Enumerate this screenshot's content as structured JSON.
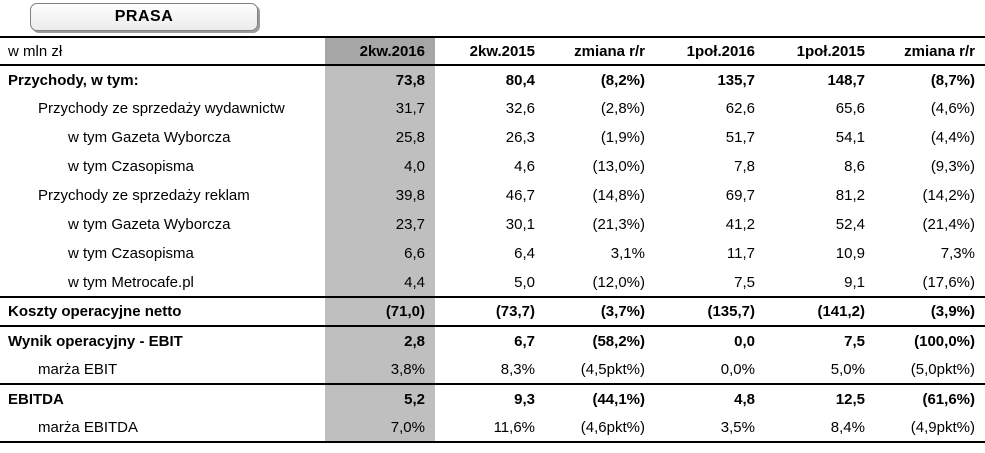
{
  "title": "PRASA",
  "colors": {
    "highlight_column": "#bfbfbf",
    "highlight_header": "#a6a6a6",
    "rule": "#000000"
  },
  "table": {
    "unit_label": "w mln zł",
    "columns": [
      "2kw.2016",
      "2kw.2015",
      "zmiana r/r",
      "1poł.2016",
      "1poł.2015",
      "zmiana r/r"
    ],
    "rows": [
      {
        "label": "Przychody, w tym:",
        "values": [
          "73,8",
          "80,4",
          "(8,2%)",
          "135,7",
          "148,7",
          "(8,7%)"
        ]
      },
      {
        "label": "Przychody ze sprzedaży wydawnictw",
        "values": [
          "31,7",
          "32,6",
          "(2,8%)",
          "62,6",
          "65,6",
          "(4,6%)"
        ]
      },
      {
        "label": "w tym Gazeta Wyborcza",
        "values": [
          "25,8",
          "26,3",
          "(1,9%)",
          "51,7",
          "54,1",
          "(4,4%)"
        ]
      },
      {
        "label": "w tym Czasopisma",
        "values": [
          "4,0",
          "4,6",
          "(13,0%)",
          "7,8",
          "8,6",
          "(9,3%)"
        ]
      },
      {
        "label": "Przychody ze sprzedaży reklam",
        "values": [
          "39,8",
          "46,7",
          "(14,8%)",
          "69,7",
          "81,2",
          "(14,2%)"
        ]
      },
      {
        "label": "w tym Gazeta Wyborcza",
        "values": [
          "23,7",
          "30,1",
          "(21,3%)",
          "41,2",
          "52,4",
          "(21,4%)"
        ]
      },
      {
        "label": "w tym Czasopisma",
        "values": [
          "6,6",
          "6,4",
          "3,1%",
          "11,7",
          "10,9",
          "7,3%"
        ]
      },
      {
        "label": "w tym Metrocafe.pl",
        "values": [
          "4,4",
          "5,0",
          "(12,0%)",
          "7,5",
          "9,1",
          "(17,6%)"
        ]
      },
      {
        "label": "Koszty operacyjne netto",
        "values": [
          "(71,0)",
          "(73,7)",
          "(3,7%)",
          "(135,7)",
          "(141,2)",
          "(3,9%)"
        ]
      },
      {
        "label": "Wynik operacyjny - EBIT",
        "values": [
          "2,8",
          "6,7",
          "(58,2%)",
          "0,0",
          "7,5",
          "(100,0%)"
        ]
      },
      {
        "label": "marża EBIT",
        "values": [
          "3,8%",
          "8,3%",
          "(4,5pkt%)",
          "0,0%",
          "5,0%",
          "(5,0pkt%)"
        ]
      },
      {
        "label": "EBITDA",
        "values": [
          "5,2",
          "9,3",
          "(44,1%)",
          "4,8",
          "12,5",
          "(61,6%)"
        ]
      },
      {
        "label": "marża EBITDA",
        "values": [
          "7,0%",
          "11,6%",
          "(4,6pkt%)",
          "3,5%",
          "8,4%",
          "(4,9pkt%)"
        ]
      }
    ]
  }
}
